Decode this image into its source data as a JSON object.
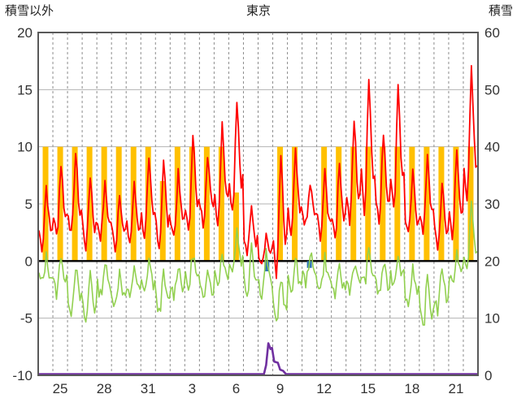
{
  "header": {
    "left_axis_title": "積雪以外",
    "chart_title": "東京",
    "right_axis_title": "積雪"
  },
  "colors": {
    "red_line": "#FF0000",
    "green_line": "#92D050",
    "orange_bars": "#FFC000",
    "purple_line": "#7030A0",
    "blue_bars": "#2E75B6",
    "zero_line": "#000000",
    "h_grid": "#b3b3b3",
    "v_grid": "#8c8c8c",
    "frame": "#595959",
    "tick_text": "#333333"
  },
  "chart_data": {
    "type": "line",
    "title": "東京",
    "x_axis": {
      "labels": [
        "25",
        "28",
        "31",
        "3",
        "6",
        "9",
        "12",
        "15",
        "18",
        "21"
      ],
      "label_day_indices": [
        1,
        4,
        7,
        10,
        13,
        16,
        19,
        22,
        25,
        28
      ],
      "total_days": 30,
      "grid": "dashed-daily"
    },
    "left_axis": {
      "title": "積雪以外",
      "min": -10,
      "max": 20,
      "ticks": [
        20,
        15,
        10,
        5,
        0,
        -5,
        -10
      ]
    },
    "right_axis": {
      "title": "積雪",
      "min": 0,
      "max": 60,
      "ticks": [
        60,
        50,
        40,
        30,
        20,
        10,
        0
      ]
    },
    "series": [
      {
        "name": "red-line",
        "type": "line",
        "axis": "left",
        "color": "#FF0000",
        "daily_max_min": [
          [
            7,
            1
          ],
          [
            9,
            2
          ],
          [
            10,
            2
          ],
          [
            8,
            1
          ],
          [
            7,
            2
          ],
          [
            6.5,
            1
          ],
          [
            7,
            1.5
          ],
          [
            9,
            2
          ],
          [
            9.5,
            1
          ],
          [
            8,
            2
          ],
          [
            12,
            2
          ],
          [
            10,
            3
          ],
          [
            13,
            3
          ],
          [
            15,
            4
          ],
          [
            5,
            0.5
          ],
          [
            2.5,
            0
          ],
          [
            10,
            -1.5
          ],
          [
            10,
            2
          ],
          [
            7,
            3
          ],
          [
            8,
            2
          ],
          [
            9,
            2
          ],
          [
            13,
            3
          ],
          [
            17,
            4
          ],
          [
            12,
            3
          ],
          [
            16.5,
            4
          ],
          [
            8,
            2
          ],
          [
            10,
            2
          ],
          [
            7,
            1
          ],
          [
            10,
            2
          ],
          [
            17.5,
            5
          ]
        ]
      },
      {
        "name": "green-line",
        "type": "line",
        "axis": "left",
        "color": "#92D050",
        "daily_max_min": [
          [
            0.5,
            -2
          ],
          [
            1,
            -3
          ],
          [
            0,
            -4.5
          ],
          [
            -0.5,
            -5.5
          ],
          [
            0,
            -3
          ],
          [
            -0.5,
            -4
          ],
          [
            0,
            -3.5
          ],
          [
            0.5,
            -3
          ],
          [
            -1,
            -4.5
          ],
          [
            0,
            -3
          ],
          [
            1,
            -2.5
          ],
          [
            0,
            -3.5
          ],
          [
            1,
            -2
          ],
          [
            3,
            -1
          ],
          [
            2,
            -3
          ],
          [
            1,
            -3
          ],
          [
            -1,
            -5.5
          ],
          [
            0,
            -2.5
          ],
          [
            1,
            -2
          ],
          [
            0.5,
            -2.5
          ],
          [
            -0.5,
            -3
          ],
          [
            0,
            -2.5
          ],
          [
            1,
            -2
          ],
          [
            0,
            -3
          ],
          [
            1,
            -2
          ],
          [
            0,
            -4
          ],
          [
            -1,
            -6
          ],
          [
            0,
            -4.5
          ],
          [
            1,
            -2
          ],
          [
            5.5,
            -1
          ]
        ]
      },
      {
        "name": "orange-bars",
        "type": "bar",
        "axis": "left",
        "color": "#FFC000",
        "daily_values": [
          10,
          10,
          10,
          10,
          10,
          10,
          10,
          10,
          7,
          10,
          10,
          10,
          10,
          6,
          0,
          0,
          10,
          10,
          0,
          10,
          10,
          10,
          10,
          10,
          10,
          10,
          10,
          10,
          10,
          10
        ]
      },
      {
        "name": "purple-line",
        "type": "line",
        "axis": "right",
        "color": "#7030A0",
        "points": [
          [
            0,
            0
          ],
          [
            15.4,
            0
          ],
          [
            15.55,
            1.8
          ],
          [
            15.7,
            5.6
          ],
          [
            15.85,
            4.6
          ],
          [
            15.95,
            4.8
          ],
          [
            16.1,
            2.4
          ],
          [
            16.35,
            2.2
          ],
          [
            16.5,
            1.0
          ],
          [
            16.7,
            0.8
          ],
          [
            16.9,
            0.2
          ],
          [
            17.1,
            0
          ],
          [
            30,
            0
          ]
        ]
      },
      {
        "name": "blue-bars",
        "type": "bar",
        "axis": "left",
        "color": "#2E75B6",
        "bars": [
          {
            "day": 15.6,
            "height_below_zero": 0.9
          },
          {
            "day": 18.5,
            "height_below_zero": 0.6
          }
        ]
      }
    ]
  }
}
